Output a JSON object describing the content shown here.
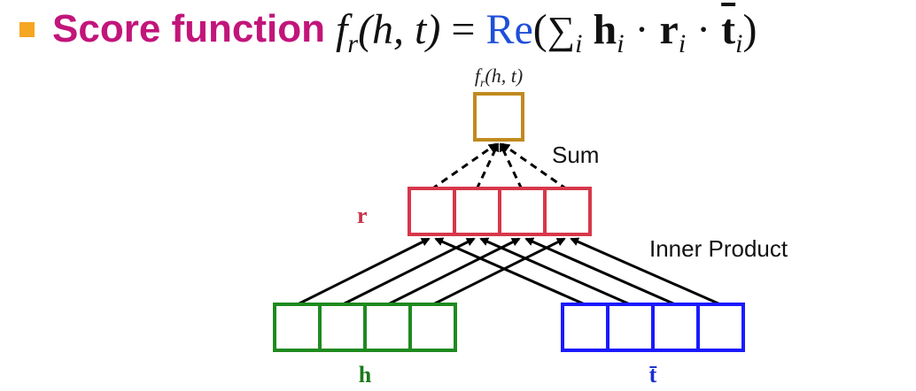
{
  "title": {
    "label": "Score function",
    "formula_lhs": "f",
    "formula_lhs_sub": "r",
    "formula_args": "(h, t)",
    "formula_equals": "=",
    "formula_re": "Re",
    "formula_sum": "∑",
    "formula_sum_sub": "i",
    "formula_h": "h",
    "formula_r": "r",
    "formula_t": "t",
    "formula_dot": "·"
  },
  "diagram": {
    "output_label": "f_r(h,t)",
    "output_label_f": "f",
    "output_label_sub": "r",
    "output_label_args": "(h, t)",
    "sum_label": "Sum",
    "inner_product_label": "Inner Product",
    "r_label": "r",
    "h_label": "h",
    "t_label": "t̄",
    "colors": {
      "output_box": "#c08a1e",
      "r_vector": "#d7374a",
      "h_vector": "#1f8a1f",
      "t_vector": "#1a1aff",
      "r_label": "#c8324a",
      "h_label": "#1a7a1a",
      "t_label": "#1a2fd0",
      "arrows": "#000000"
    },
    "vector_cells": 4
  }
}
